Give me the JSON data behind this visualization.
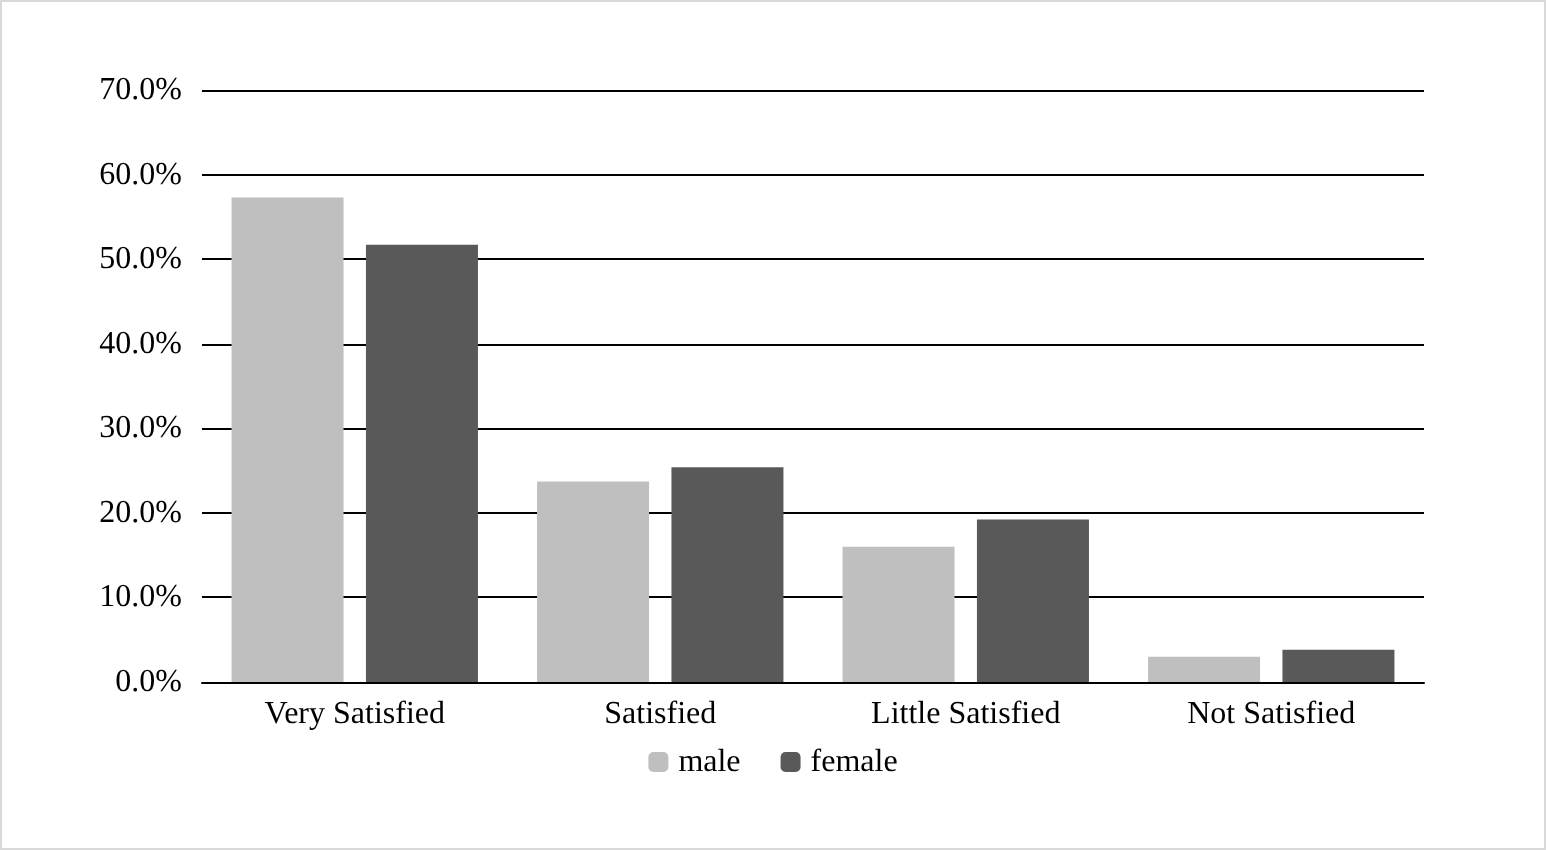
{
  "chart_data": {
    "type": "bar",
    "categories": [
      "Very Satisfied",
      "Satisfied",
      "Little Satisfied",
      "Not Satisfied"
    ],
    "series": [
      {
        "name": "male",
        "color": "#bfbfbf",
        "values": [
          57.3,
          23.7,
          16.0,
          3.0
        ]
      },
      {
        "name": "female",
        "color": "#595959",
        "values": [
          51.7,
          25.4,
          19.2,
          3.8
        ]
      }
    ],
    "ylim": [
      0,
      70
    ],
    "yticks": [
      {
        "value": 0,
        "label": "0.0%"
      },
      {
        "value": 10,
        "label": "10.0%"
      },
      {
        "value": 20,
        "label": "20.0%"
      },
      {
        "value": 30,
        "label": "30.0%"
      },
      {
        "value": 40,
        "label": "40.0%"
      },
      {
        "value": 50,
        "label": "50.0%"
      },
      {
        "value": 60,
        "label": "60.0%"
      },
      {
        "value": 70,
        "label": "70.0%"
      }
    ],
    "grid": "y",
    "legend": "bottom"
  }
}
